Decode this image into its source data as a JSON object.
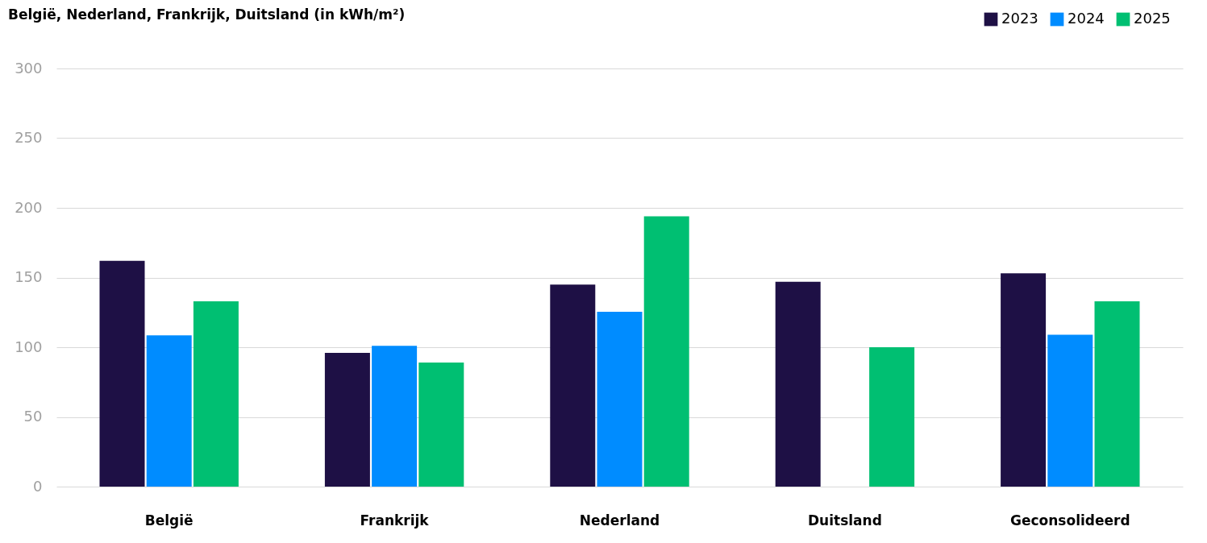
{
  "chart_data": {
    "type": "bar",
    "title": "België, Nederland, Frankrijk, Duitsland (in kWh/m²)",
    "categories": [
      "België",
      "Frankrijk",
      "Nederland",
      "Duitsland",
      "Geconsolideerd"
    ],
    "series": [
      {
        "name": "2023",
        "color": "#1e1045",
        "values": [
          162,
          96,
          145,
          147,
          153
        ]
      },
      {
        "name": "2024",
        "color": "#008cff",
        "values": [
          108.5,
          101,
          125.5,
          null,
          109
        ]
      },
      {
        "name": "2025",
        "color": "#00bf72",
        "values": [
          133,
          89,
          194,
          100,
          133
        ]
      }
    ],
    "ylim": [
      0,
      300
    ],
    "yticks": [
      0,
      50,
      100,
      150,
      200,
      250,
      300
    ],
    "grid": "y",
    "legend": "top right"
  }
}
